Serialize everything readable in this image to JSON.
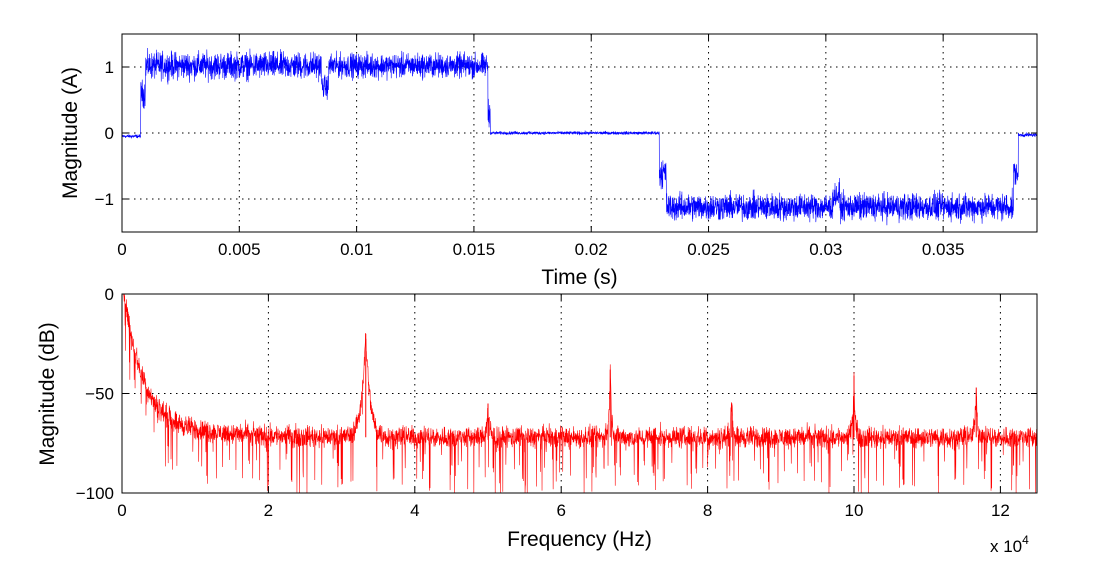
{
  "chart_data": [
    {
      "type": "line",
      "xlabel": "Time (s)",
      "ylabel": "Magnitude (A)",
      "xlim": [
        0,
        0.039
      ],
      "ylim": [
        -1.5,
        1.5
      ],
      "xticks": [
        0,
        0.005,
        0.01,
        0.015,
        0.02,
        0.025,
        0.03,
        0.035
      ],
      "xtick_labels": [
        "0",
        "0.005",
        "0.01",
        "0.015",
        "0.02",
        "0.025",
        "0.03",
        "0.035"
      ],
      "yticks": [
        -1,
        0,
        1
      ],
      "ytick_labels": [
        "−1",
        "0",
        "1"
      ],
      "grid": true,
      "color": "#0000ff",
      "series": [
        {
          "segments": [
            {
              "x": [
                0,
                0.0008
              ],
              "mean": -0.05,
              "noise": 0.04
            },
            {
              "x": [
                0.0008,
                0.001
              ],
              "mean": 0.6,
              "noise": 0.3
            },
            {
              "x": [
                0.001,
                0.0085
              ],
              "mean": 1.02,
              "noise": 0.3
            },
            {
              "x": [
                0.0085,
                0.0088
              ],
              "mean": 0.7,
              "noise": 0.25
            },
            {
              "x": [
                0.0088,
                0.0156
              ],
              "mean": 1.02,
              "noise": 0.27
            },
            {
              "x": [
                0.0156,
                0.0157
              ],
              "mean": 0.3,
              "noise": 0.3
            },
            {
              "x": [
                0.0157,
                0.0229
              ],
              "mean": 0.0,
              "noise": 0.035
            },
            {
              "x": [
                0.0229,
                0.0232
              ],
              "mean": -0.6,
              "noise": 0.35
            },
            {
              "x": [
                0.0232,
                0.0303
              ],
              "mean": -1.12,
              "noise": 0.3
            },
            {
              "x": [
                0.0303,
                0.0306
              ],
              "mean": -0.95,
              "noise": 0.3
            },
            {
              "x": [
                0.0306,
                0.038
              ],
              "mean": -1.12,
              "noise": 0.3
            },
            {
              "x": [
                0.038,
                0.0382
              ],
              "mean": -0.6,
              "noise": 0.3
            },
            {
              "x": [
                0.0382,
                0.039
              ],
              "mean": -0.03,
              "noise": 0.04
            }
          ]
        }
      ]
    },
    {
      "type": "line",
      "xlabel": "Frequency (Hz)",
      "ylabel": "Magnitude (dB)",
      "xlim": [
        0,
        125000
      ],
      "ylim": [
        -100,
        0
      ],
      "xticks": [
        0,
        20000,
        40000,
        60000,
        80000,
        100000,
        120000
      ],
      "xtick_labels": [
        "0",
        "2",
        "4",
        "6",
        "8",
        "10",
        "12"
      ],
      "x_multiplier_label": "x 10",
      "x_multiplier_exponent": "4",
      "yticks": [
        -100,
        -50,
        0
      ],
      "ytick_labels": [
        "−100",
        "−50",
        "0"
      ],
      "grid": true,
      "color": "#ff0000",
      "series": [
        {
          "noise_floor_db": -72,
          "noise_spread_db": 8,
          "dc_db": 0,
          "peaks": [
            {
              "x": 33300,
              "y": -20
            },
            {
              "x": 50000,
              "y": -55
            },
            {
              "x": 66700,
              "y": -38
            },
            {
              "x": 83300,
              "y": -55
            },
            {
              "x": 100000,
              "y": -41
            },
            {
              "x": 116700,
              "y": -47
            }
          ]
        }
      ]
    }
  ]
}
